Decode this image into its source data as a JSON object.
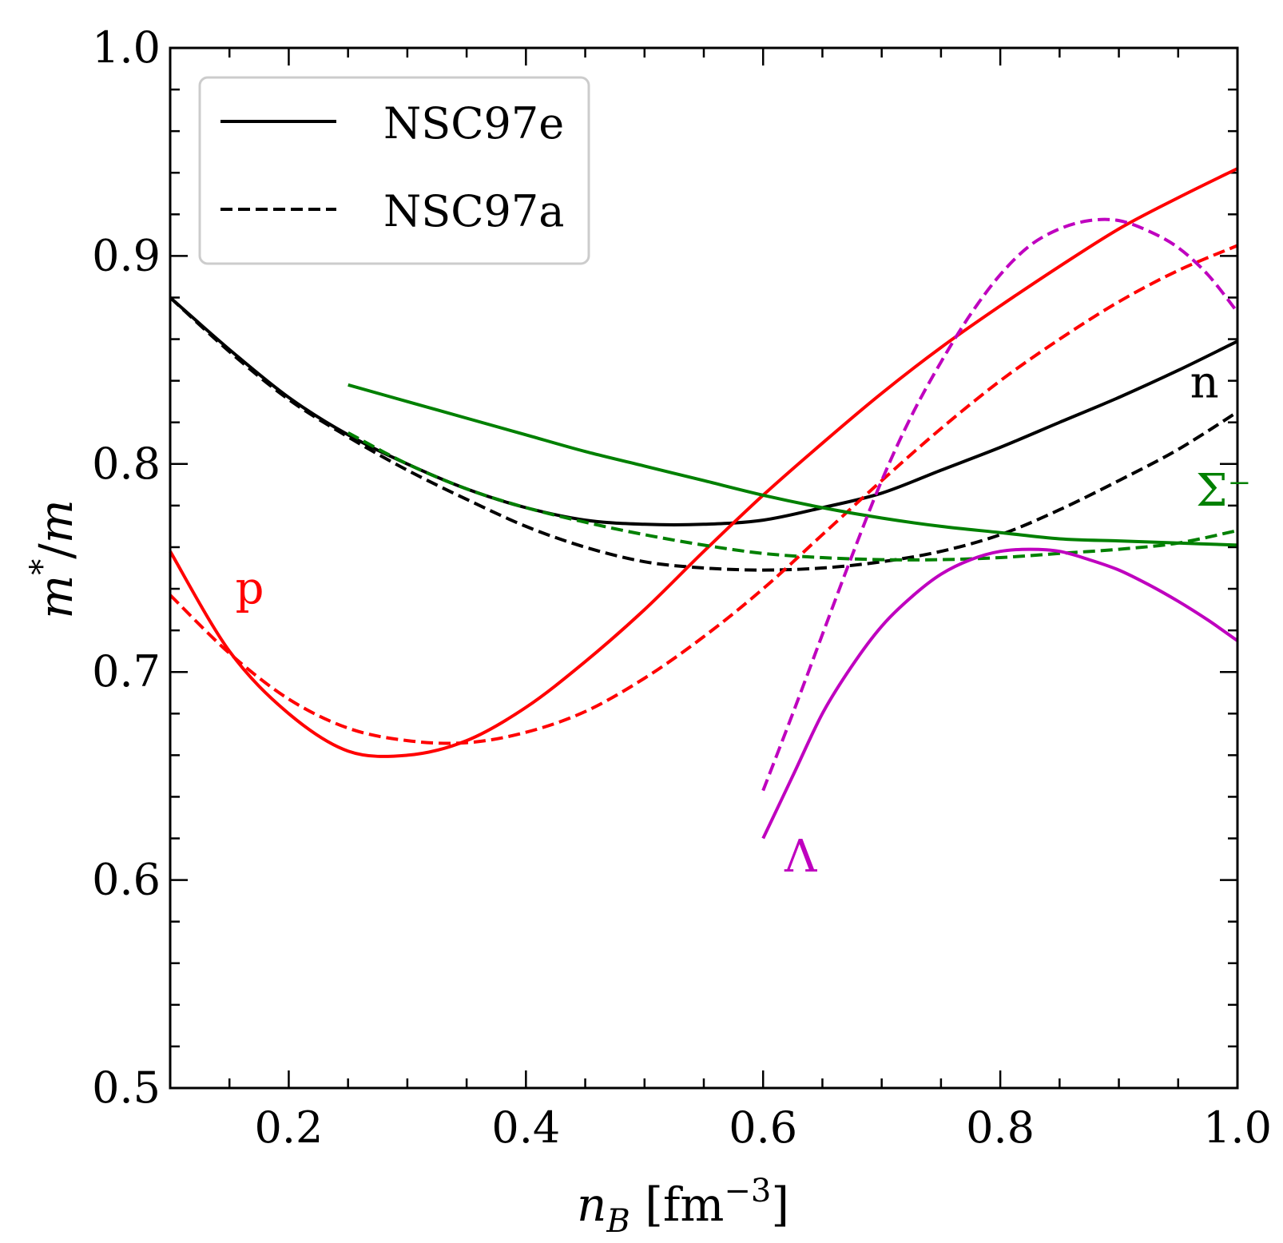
{
  "chart_data": {
    "type": "line",
    "xlabel": "n_B [fm^-3]",
    "ylabel": "m*/m",
    "xlim": [
      0.1,
      1.0
    ],
    "ylim": [
      0.5,
      1.0
    ],
    "xticks": [
      "0.2",
      "0.4",
      "0.6",
      "0.8",
      "1.0"
    ],
    "xtick_values": [
      0.2,
      0.4,
      0.6,
      0.8,
      1.0
    ],
    "yticks": [
      "0.5",
      "0.6",
      "0.7",
      "0.8",
      "0.9",
      "1.0"
    ],
    "ytick_values": [
      0.5,
      0.6,
      0.7,
      0.8,
      0.9,
      1.0
    ],
    "grid": false,
    "legend_position": "top-left",
    "legend": [
      {
        "label": "NSC97e",
        "style": "solid"
      },
      {
        "label": "NSC97a",
        "style": "dashed"
      }
    ],
    "curve_labels": [
      {
        "text": "n",
        "color": "#000000",
        "x": 0.96,
        "y": 0.832
      },
      {
        "text": "Σ⁻",
        "color": "#008000",
        "x": 0.965,
        "y": 0.78
      },
      {
        "text": "p",
        "color": "#ff0000",
        "x": 0.155,
        "y": 0.733
      },
      {
        "text": "Λ",
        "color": "#bf00bf",
        "x": 0.618,
        "y": 0.604
      }
    ],
    "series": [
      {
        "particle": "n",
        "model": "NSC97e",
        "color": "#000000",
        "style": "solid",
        "x": [
          0.1,
          0.15,
          0.2,
          0.25,
          0.3,
          0.35,
          0.4,
          0.45,
          0.5,
          0.55,
          0.6,
          0.65,
          0.7,
          0.75,
          0.8,
          0.85,
          0.9,
          0.95,
          1.0
        ],
        "y": [
          0.88,
          0.855,
          0.832,
          0.814,
          0.8,
          0.788,
          0.779,
          0.773,
          0.771,
          0.771,
          0.773,
          0.779,
          0.786,
          0.797,
          0.808,
          0.82,
          0.832,
          0.845,
          0.859
        ]
      },
      {
        "particle": "n",
        "model": "NSC97a",
        "color": "#000000",
        "style": "dashed",
        "x": [
          0.1,
          0.15,
          0.2,
          0.25,
          0.3,
          0.35,
          0.4,
          0.45,
          0.5,
          0.55,
          0.6,
          0.65,
          0.7,
          0.75,
          0.8,
          0.85,
          0.9,
          0.95,
          1.0
        ],
        "y": [
          0.88,
          0.854,
          0.831,
          0.813,
          0.797,
          0.783,
          0.77,
          0.76,
          0.753,
          0.75,
          0.749,
          0.75,
          0.753,
          0.758,
          0.766,
          0.778,
          0.792,
          0.807,
          0.825
        ]
      },
      {
        "particle": "p",
        "model": "NSC97e",
        "color": "#ff0000",
        "style": "solid",
        "x": [
          0.1,
          0.15,
          0.2,
          0.25,
          0.3,
          0.35,
          0.4,
          0.45,
          0.5,
          0.55,
          0.6,
          0.65,
          0.7,
          0.75,
          0.8,
          0.85,
          0.9,
          0.95,
          1.0
        ],
        "y": [
          0.758,
          0.71,
          0.68,
          0.662,
          0.66,
          0.667,
          0.683,
          0.705,
          0.73,
          0.758,
          0.785,
          0.81,
          0.834,
          0.856,
          0.876,
          0.895,
          0.913,
          0.928,
          0.942
        ]
      },
      {
        "particle": "p",
        "model": "NSC97a",
        "color": "#ff0000",
        "style": "dashed",
        "x": [
          0.1,
          0.15,
          0.2,
          0.25,
          0.3,
          0.35,
          0.4,
          0.45,
          0.5,
          0.55,
          0.6,
          0.65,
          0.7,
          0.75,
          0.8,
          0.85,
          0.9,
          0.95,
          1.0
        ],
        "y": [
          0.737,
          0.709,
          0.687,
          0.673,
          0.667,
          0.666,
          0.671,
          0.681,
          0.697,
          0.717,
          0.74,
          0.766,
          0.792,
          0.817,
          0.84,
          0.86,
          0.878,
          0.893,
          0.905
        ]
      },
      {
        "particle": "Σ⁻",
        "model": "NSC97e",
        "color": "#008000",
        "style": "solid",
        "x": [
          0.25,
          0.3,
          0.35,
          0.4,
          0.45,
          0.5,
          0.55,
          0.6,
          0.65,
          0.7,
          0.75,
          0.8,
          0.85,
          0.9,
          0.95,
          1.0
        ],
        "y": [
          0.838,
          0.83,
          0.822,
          0.814,
          0.806,
          0.799,
          0.792,
          0.785,
          0.779,
          0.774,
          0.77,
          0.767,
          0.764,
          0.763,
          0.762,
          0.761
        ]
      },
      {
        "particle": "Σ⁻",
        "model": "NSC97a",
        "color": "#008000",
        "style": "dashed",
        "x": [
          0.25,
          0.3,
          0.35,
          0.4,
          0.45,
          0.5,
          0.55,
          0.6,
          0.65,
          0.7,
          0.75,
          0.8,
          0.85,
          0.9,
          0.95,
          1.0
        ],
        "y": [
          0.815,
          0.8,
          0.788,
          0.779,
          0.772,
          0.766,
          0.761,
          0.757,
          0.755,
          0.754,
          0.754,
          0.755,
          0.757,
          0.759,
          0.762,
          0.768
        ]
      },
      {
        "particle": "Λ",
        "model": "NSC97e",
        "color": "#bf00bf",
        "style": "solid",
        "x": [
          0.6,
          0.625,
          0.65,
          0.675,
          0.7,
          0.725,
          0.75,
          0.775,
          0.8,
          0.825,
          0.85,
          0.875,
          0.9,
          0.925,
          0.95,
          0.975,
          1.0
        ],
        "y": [
          0.62,
          0.65,
          0.68,
          0.703,
          0.722,
          0.736,
          0.747,
          0.754,
          0.758,
          0.759,
          0.758,
          0.754,
          0.749,
          0.742,
          0.734,
          0.725,
          0.715
        ]
      },
      {
        "particle": "Λ",
        "model": "NSC97a",
        "color": "#bf00bf",
        "style": "dashed",
        "x": [
          0.6,
          0.625,
          0.65,
          0.675,
          0.7,
          0.725,
          0.75,
          0.775,
          0.8,
          0.825,
          0.85,
          0.875,
          0.9,
          0.925,
          0.95,
          0.975,
          1.0
        ],
        "y": [
          0.643,
          0.68,
          0.718,
          0.756,
          0.792,
          0.823,
          0.849,
          0.872,
          0.891,
          0.905,
          0.913,
          0.917,
          0.917,
          0.912,
          0.904,
          0.891,
          0.873
        ]
      }
    ]
  }
}
